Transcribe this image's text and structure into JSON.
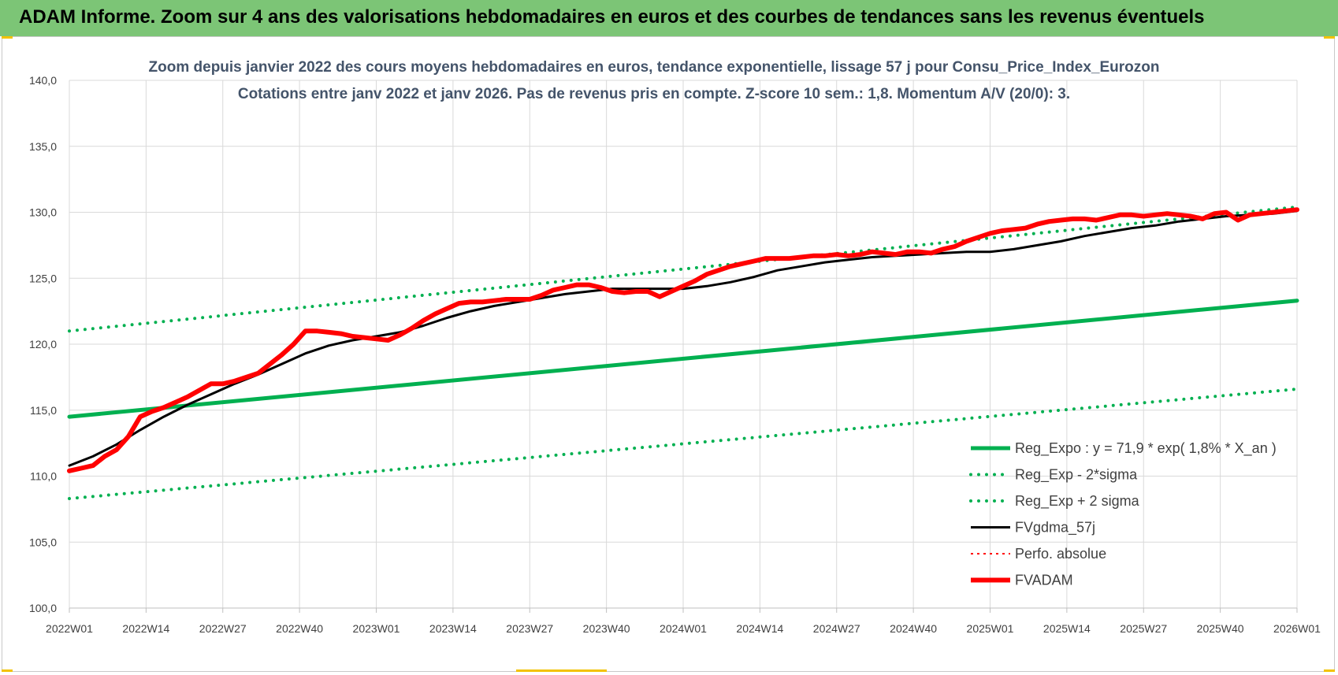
{
  "banner": {
    "title": "ADAM Informe. Zoom sur 4 ans des valorisations hebdomadaires en euros et des courbes de tendances sans les revenus éventuels",
    "color": "#7cc576"
  },
  "chart_data": {
    "type": "line",
    "title_line1": "Zoom depuis janvier 2022 des cours moyens hebdomadaires en euros, tendance exponentielle, lissage 57 j pour Consu_Price_Index_Eurozon",
    "title_line2": "Cotations entre janv 2022 et janv 2026. Pas de revenus pris en compte. Z-score 10 sem.: 1,8. Momentum A/V (20/0): 3.",
    "xlabel": "",
    "ylabel": "",
    "ylim": [
      100,
      140
    ],
    "yticks": [
      "100,0",
      "105,0",
      "110,0",
      "115,0",
      "120,0",
      "125,0",
      "130,0",
      "135,0",
      "140,0"
    ],
    "xticks": [
      "2022W01",
      "2022W14",
      "2022W27",
      "2022W40",
      "2023W01",
      "2023W14",
      "2023W27",
      "2023W40",
      "2024W01",
      "2024W14",
      "2024W27",
      "2024W40",
      "2025W01",
      "2025W14",
      "2025W27",
      "2025W40",
      "2026W01"
    ],
    "xtick_weeks": [
      0,
      13,
      26,
      39,
      52,
      65,
      78,
      91,
      104,
      117,
      130,
      143,
      156,
      169,
      182,
      195,
      208
    ],
    "x_max_week": 208,
    "grid": true,
    "legend_position": "bottom-right",
    "series": [
      {
        "name": "Reg_Expo : y = 71,9 * exp( 1,8% *  X_an )",
        "style": "solid",
        "color": "#00b050",
        "width": 5,
        "points": [
          [
            0,
            114.5
          ],
          [
            208,
            123.3
          ]
        ]
      },
      {
        "name": "Reg_Exp - 2*sigma",
        "style": "dotted",
        "color": "#00b050",
        "width": 4,
        "points": [
          [
            0,
            108.3
          ],
          [
            208,
            116.6
          ]
        ]
      },
      {
        "name": "Reg_Exp + 2 sigma",
        "style": "dotted",
        "color": "#00b050",
        "width": 4,
        "points": [
          [
            0,
            121.0
          ],
          [
            208,
            130.4
          ]
        ]
      },
      {
        "name": "FVgdma_57j",
        "style": "solid",
        "color": "#000000",
        "width": 3,
        "points": [
          [
            0,
            110.8
          ],
          [
            4,
            111.5
          ],
          [
            8,
            112.4
          ],
          [
            12,
            113.5
          ],
          [
            16,
            114.5
          ],
          [
            20,
            115.4
          ],
          [
            24,
            116.2
          ],
          [
            28,
            117.0
          ],
          [
            32,
            117.7
          ],
          [
            36,
            118.5
          ],
          [
            40,
            119.3
          ],
          [
            44,
            119.9
          ],
          [
            48,
            120.3
          ],
          [
            52,
            120.6
          ],
          [
            56,
            120.9
          ],
          [
            60,
            121.4
          ],
          [
            64,
            122.0
          ],
          [
            68,
            122.5
          ],
          [
            72,
            122.9
          ],
          [
            76,
            123.2
          ],
          [
            80,
            123.5
          ],
          [
            84,
            123.8
          ],
          [
            88,
            124.0
          ],
          [
            92,
            124.2
          ],
          [
            96,
            124.2
          ],
          [
            100,
            124.2
          ],
          [
            104,
            124.2
          ],
          [
            108,
            124.4
          ],
          [
            112,
            124.7
          ],
          [
            116,
            125.1
          ],
          [
            120,
            125.6
          ],
          [
            124,
            125.9
          ],
          [
            128,
            126.2
          ],
          [
            132,
            126.4
          ],
          [
            136,
            126.6
          ],
          [
            140,
            126.7
          ],
          [
            144,
            126.8
          ],
          [
            148,
            126.9
          ],
          [
            152,
            127.0
          ],
          [
            156,
            127.0
          ],
          [
            160,
            127.2
          ],
          [
            164,
            127.5
          ],
          [
            168,
            127.8
          ],
          [
            172,
            128.2
          ],
          [
            176,
            128.5
          ],
          [
            180,
            128.8
          ],
          [
            184,
            129.0
          ],
          [
            188,
            129.3
          ],
          [
            192,
            129.5
          ],
          [
            196,
            129.7
          ],
          [
            200,
            129.8
          ],
          [
            204,
            129.9
          ],
          [
            208,
            130.1
          ]
        ]
      },
      {
        "name": "Perfo. absolue",
        "style": "dotted",
        "color": "#ff0000",
        "width": 2,
        "points": []
      },
      {
        "name": "FVADAM",
        "style": "solid",
        "color": "#ff0000",
        "width": 6,
        "points": [
          [
            0,
            110.4
          ],
          [
            2,
            110.6
          ],
          [
            4,
            110.8
          ],
          [
            6,
            111.5
          ],
          [
            8,
            112.0
          ],
          [
            10,
            113.0
          ],
          [
            12,
            114.5
          ],
          [
            14,
            114.9
          ],
          [
            16,
            115.2
          ],
          [
            18,
            115.6
          ],
          [
            20,
            116.0
          ],
          [
            22,
            116.5
          ],
          [
            24,
            117.0
          ],
          [
            26,
            117.0
          ],
          [
            28,
            117.2
          ],
          [
            30,
            117.5
          ],
          [
            32,
            117.8
          ],
          [
            34,
            118.5
          ],
          [
            36,
            119.2
          ],
          [
            38,
            120.0
          ],
          [
            40,
            121.0
          ],
          [
            42,
            121.0
          ],
          [
            44,
            120.9
          ],
          [
            46,
            120.8
          ],
          [
            48,
            120.6
          ],
          [
            50,
            120.5
          ],
          [
            52,
            120.4
          ],
          [
            54,
            120.3
          ],
          [
            56,
            120.7
          ],
          [
            58,
            121.2
          ],
          [
            60,
            121.8
          ],
          [
            62,
            122.3
          ],
          [
            64,
            122.7
          ],
          [
            66,
            123.1
          ],
          [
            68,
            123.2
          ],
          [
            70,
            123.2
          ],
          [
            72,
            123.3
          ],
          [
            74,
            123.4
          ],
          [
            76,
            123.4
          ],
          [
            78,
            123.4
          ],
          [
            80,
            123.7
          ],
          [
            82,
            124.1
          ],
          [
            84,
            124.3
          ],
          [
            86,
            124.5
          ],
          [
            88,
            124.5
          ],
          [
            90,
            124.3
          ],
          [
            92,
            124.0
          ],
          [
            94,
            123.9
          ],
          [
            96,
            124.0
          ],
          [
            98,
            124.0
          ],
          [
            100,
            123.6
          ],
          [
            102,
            124.0
          ],
          [
            104,
            124.4
          ],
          [
            106,
            124.8
          ],
          [
            108,
            125.3
          ],
          [
            110,
            125.6
          ],
          [
            112,
            125.9
          ],
          [
            114,
            126.1
          ],
          [
            116,
            126.3
          ],
          [
            118,
            126.5
          ],
          [
            120,
            126.5
          ],
          [
            122,
            126.5
          ],
          [
            124,
            126.6
          ],
          [
            126,
            126.7
          ],
          [
            128,
            126.7
          ],
          [
            130,
            126.8
          ],
          [
            132,
            126.7
          ],
          [
            134,
            126.8
          ],
          [
            136,
            127.0
          ],
          [
            138,
            126.9
          ],
          [
            140,
            126.8
          ],
          [
            142,
            127.0
          ],
          [
            144,
            127.0
          ],
          [
            146,
            126.9
          ],
          [
            148,
            127.2
          ],
          [
            150,
            127.4
          ],
          [
            152,
            127.8
          ],
          [
            154,
            128.1
          ],
          [
            156,
            128.4
          ],
          [
            158,
            128.6
          ],
          [
            160,
            128.7
          ],
          [
            162,
            128.8
          ],
          [
            164,
            129.1
          ],
          [
            166,
            129.3
          ],
          [
            168,
            129.4
          ],
          [
            170,
            129.5
          ],
          [
            172,
            129.5
          ],
          [
            174,
            129.4
          ],
          [
            176,
            129.6
          ],
          [
            178,
            129.8
          ],
          [
            180,
            129.8
          ],
          [
            182,
            129.7
          ],
          [
            184,
            129.8
          ],
          [
            186,
            129.9
          ],
          [
            188,
            129.8
          ],
          [
            190,
            129.7
          ],
          [
            192,
            129.5
          ],
          [
            194,
            129.9
          ],
          [
            196,
            130.0
          ],
          [
            198,
            129.4
          ],
          [
            200,
            129.8
          ],
          [
            202,
            129.9
          ],
          [
            204,
            130.0
          ],
          [
            206,
            130.1
          ],
          [
            208,
            130.2
          ]
        ]
      }
    ]
  },
  "colors": {
    "grid": "#d9d9d9",
    "axis": "#bfbfbf",
    "title": "#44546a"
  }
}
